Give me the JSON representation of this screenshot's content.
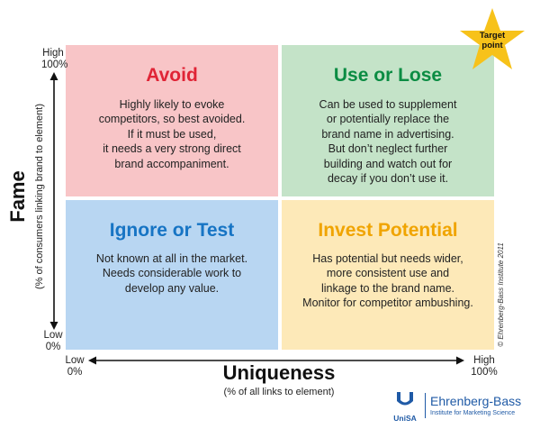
{
  "quadrants": [
    {
      "id": "avoid",
      "title": "Avoid",
      "title_color": "#e02436",
      "bg": "#f8c5c7",
      "lines": [
        "Highly likely to evoke",
        "competitors, so best avoided.",
        "If it must be used,",
        "it needs a very strong direct",
        "brand accompaniment."
      ]
    },
    {
      "id": "use-or-lose",
      "title": "Use or Lose",
      "title_color": "#0b8c43",
      "bg": "#c4e3c8",
      "lines": [
        "Can be used to supplement",
        "or potentially replace the",
        "brand name in advertising.",
        "But don’t neglect further",
        "building and watch out for",
        "decay if you don’t use it."
      ]
    },
    {
      "id": "ignore-or-test",
      "title": "Ignore or Test",
      "title_color": "#1674c4",
      "bg": "#b8d6f2",
      "lines": [
        "Not known at all in the market.",
        "Needs considerable work to",
        "develop any value."
      ]
    },
    {
      "id": "invest-potential",
      "title": "Invest Potential",
      "title_color": "#f0a400",
      "bg": "#fde9b8",
      "lines": [
        "Has potential but needs wider,",
        "more consistent use and",
        "linkage to the brand name.",
        "Monitor for competitor ambushing."
      ]
    }
  ],
  "y_axis": {
    "title": "Fame",
    "subtitle": "(% of consumers linking brand to element)",
    "top_label": "High",
    "top_value": "100%",
    "bottom_label": "Low",
    "bottom_value": "0%"
  },
  "x_axis": {
    "title": "Uniqueness",
    "subtitle": "(% of all links to element)",
    "left_label": "Low",
    "left_value": "0%",
    "right_label": "High",
    "right_value": "100%"
  },
  "star": {
    "line1": "Target",
    "line2": "point",
    "color": "#f7c21a"
  },
  "copyright": "© Ehrenberg-Bass Institute 2011",
  "logo": {
    "unisa": "UniSA",
    "name": "Ehrenberg-Bass",
    "tagline": "Institute for Marketing Science",
    "color": "#1f5aa6"
  }
}
